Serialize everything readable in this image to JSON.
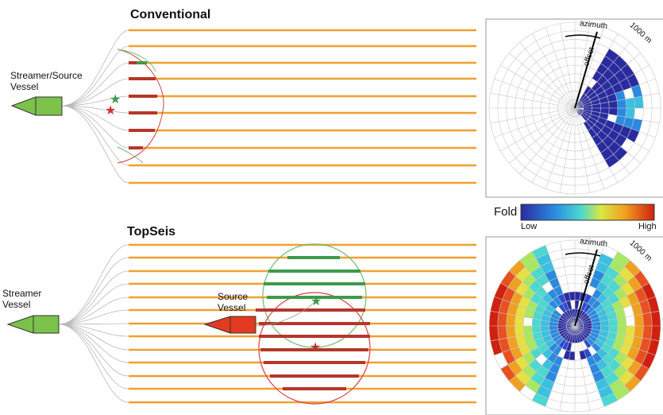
{
  "panels": {
    "conventional": {
      "title": "Conventional",
      "vessel_label_line1": "Streamer/Source",
      "vessel_label_line2": "Vessel"
    },
    "topseis": {
      "title": "TopSeis",
      "streamer_label_line1": "Streamer",
      "streamer_label_line2": "Vessel",
      "source_label_line1": "Source",
      "source_label_line2": "Vessel"
    }
  },
  "rose": {
    "azimuth_label": "azimuth",
    "offset_label": "offset",
    "radius_label": "1000 m"
  },
  "legend": {
    "title": "Fold",
    "low_label": "Low",
    "high_label": "High"
  },
  "colors": {
    "streamer": "#f0a030",
    "vessel_green": "#7cc24a",
    "source_red": "#e23b1f",
    "patch_red": "#b5372a",
    "patch_green": "#3f9a4a",
    "fold_low": "#2a2aa0"
  }
}
